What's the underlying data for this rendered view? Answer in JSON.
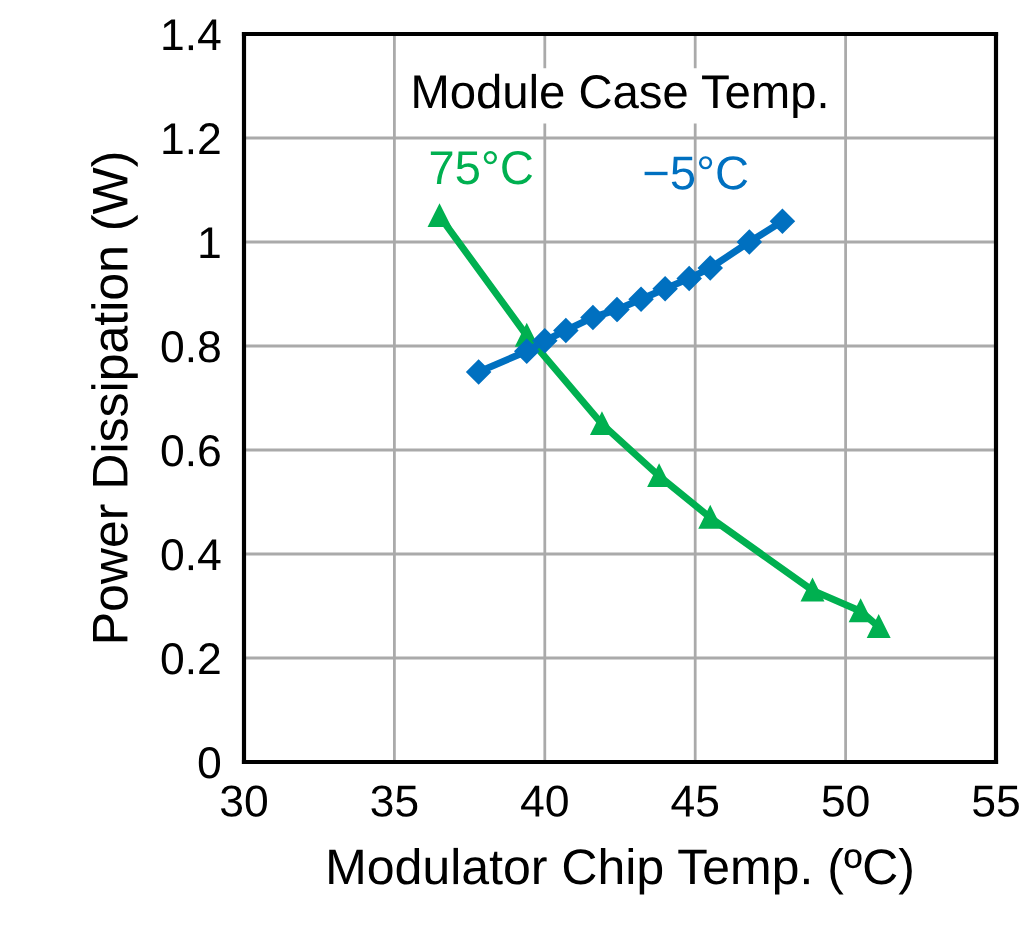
{
  "chart_data": {
    "type": "line",
    "xlabel": "Modulator Chip Temp. (ºC)",
    "ylabel": "Power Dissipation (W)",
    "annotations": [
      "Module Case Temp."
    ],
    "xlim": [
      30,
      55
    ],
    "xticks": [
      30,
      35,
      40,
      45,
      50,
      55
    ],
    "ylim": [
      0,
      1.4
    ],
    "yticks": [
      0,
      0.2,
      0.4,
      0.6,
      0.8,
      1,
      1.2,
      1.4
    ],
    "grid": true,
    "legend": false,
    "series": [
      {
        "name": "75°C",
        "color": "#00b050",
        "marker": "triangle",
        "x": [
          36.5,
          39.4,
          41.9,
          43.8,
          45.5,
          48.9,
          50.5,
          51.1
        ],
        "values": [
          1.05,
          0.82,
          0.65,
          0.55,
          0.47,
          0.33,
          0.29,
          0.26
        ]
      },
      {
        "name": "−5°C",
        "color": "#0070c0",
        "marker": "diamond",
        "x": [
          37.8,
          39.4,
          40.0,
          40.7,
          41.6,
          42.4,
          43.2,
          44.0,
          44.8,
          45.5,
          46.8,
          47.9
        ],
        "values": [
          0.75,
          0.79,
          0.81,
          0.83,
          0.855,
          0.87,
          0.89,
          0.91,
          0.93,
          0.95,
          1.0,
          1.04
        ]
      }
    ]
  }
}
